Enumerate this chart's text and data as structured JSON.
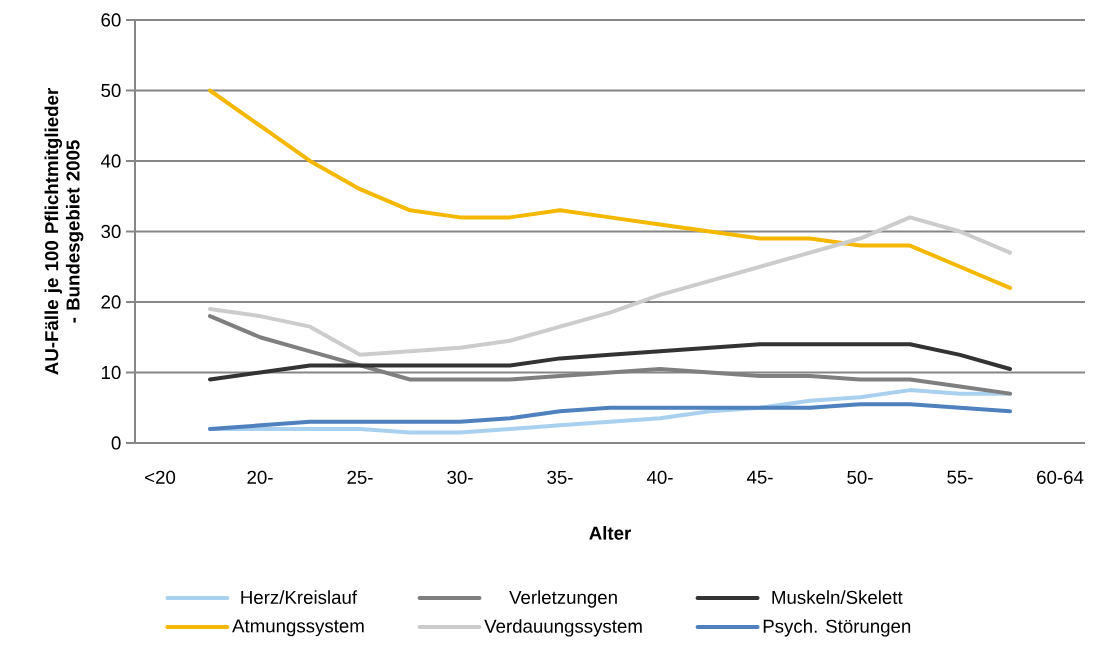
{
  "chart_data": {
    "type": "line",
    "xlabel": "Alter",
    "ylabel": "AU-Fälle je 100 Pflichtmitglieder - Bundesgebiet 2005",
    "categories": [
      "<20",
      null,
      "20-",
      null,
      "25-",
      null,
      "30-",
      null,
      "35-",
      null,
      "40-",
      null,
      "45-",
      null,
      "50-",
      null,
      "55-",
      null,
      "60-64"
    ],
    "series": [
      {
        "name": "Herz/Kreislauf",
        "color": "#a9d0ef",
        "values": [
          null,
          2,
          2,
          2,
          2,
          1.5,
          1.5,
          2,
          2.5,
          3,
          3.5,
          4.5,
          5,
          6,
          6.5,
          7.5,
          7,
          7,
          null
        ]
      },
      {
        "name": "Verletzungen",
        "color": "#7f7f7f",
        "values": [
          null,
          18,
          15,
          13,
          11,
          9,
          9,
          9,
          9.5,
          10,
          10.5,
          10,
          9.5,
          9.5,
          9,
          9,
          8,
          7,
          null
        ]
      },
      {
        "name": "Muskeln/Skelett",
        "color": "#333333",
        "values": [
          null,
          9,
          10,
          11,
          11,
          11,
          11,
          11,
          12,
          12.5,
          13,
          13.5,
          14,
          14,
          14,
          14,
          12.5,
          10.5,
          null
        ]
      },
      {
        "name": "Atmungssystem",
        "color": "#f5b800",
        "values": [
          null,
          50,
          45,
          40,
          36,
          33,
          32,
          32,
          33,
          32,
          31,
          30,
          29,
          29,
          28,
          28,
          25,
          22,
          null
        ]
      },
      {
        "name": "Verdauungssystem",
        "color": "#cccccc",
        "values": [
          null,
          19,
          18,
          16.5,
          12.5,
          13,
          13.5,
          14.5,
          16.5,
          18.5,
          21,
          23,
          25,
          27,
          29,
          32,
          30,
          27,
          null
        ]
      },
      {
        "name": "Psych. Störungen",
        "color": "#4e81bd",
        "values": [
          null,
          2,
          2.5,
          3,
          3,
          3,
          3,
          3.5,
          4.5,
          5,
          5,
          5,
          5,
          5,
          5.5,
          5.5,
          5,
          4.5,
          null
        ]
      }
    ],
    "ylim": [
      0,
      60
    ],
    "yticks": [
      0,
      10,
      20,
      30,
      40,
      50,
      60
    ],
    "grid": "y",
    "legend": "bottom",
    "marker": "none",
    "line_style": "solid"
  }
}
